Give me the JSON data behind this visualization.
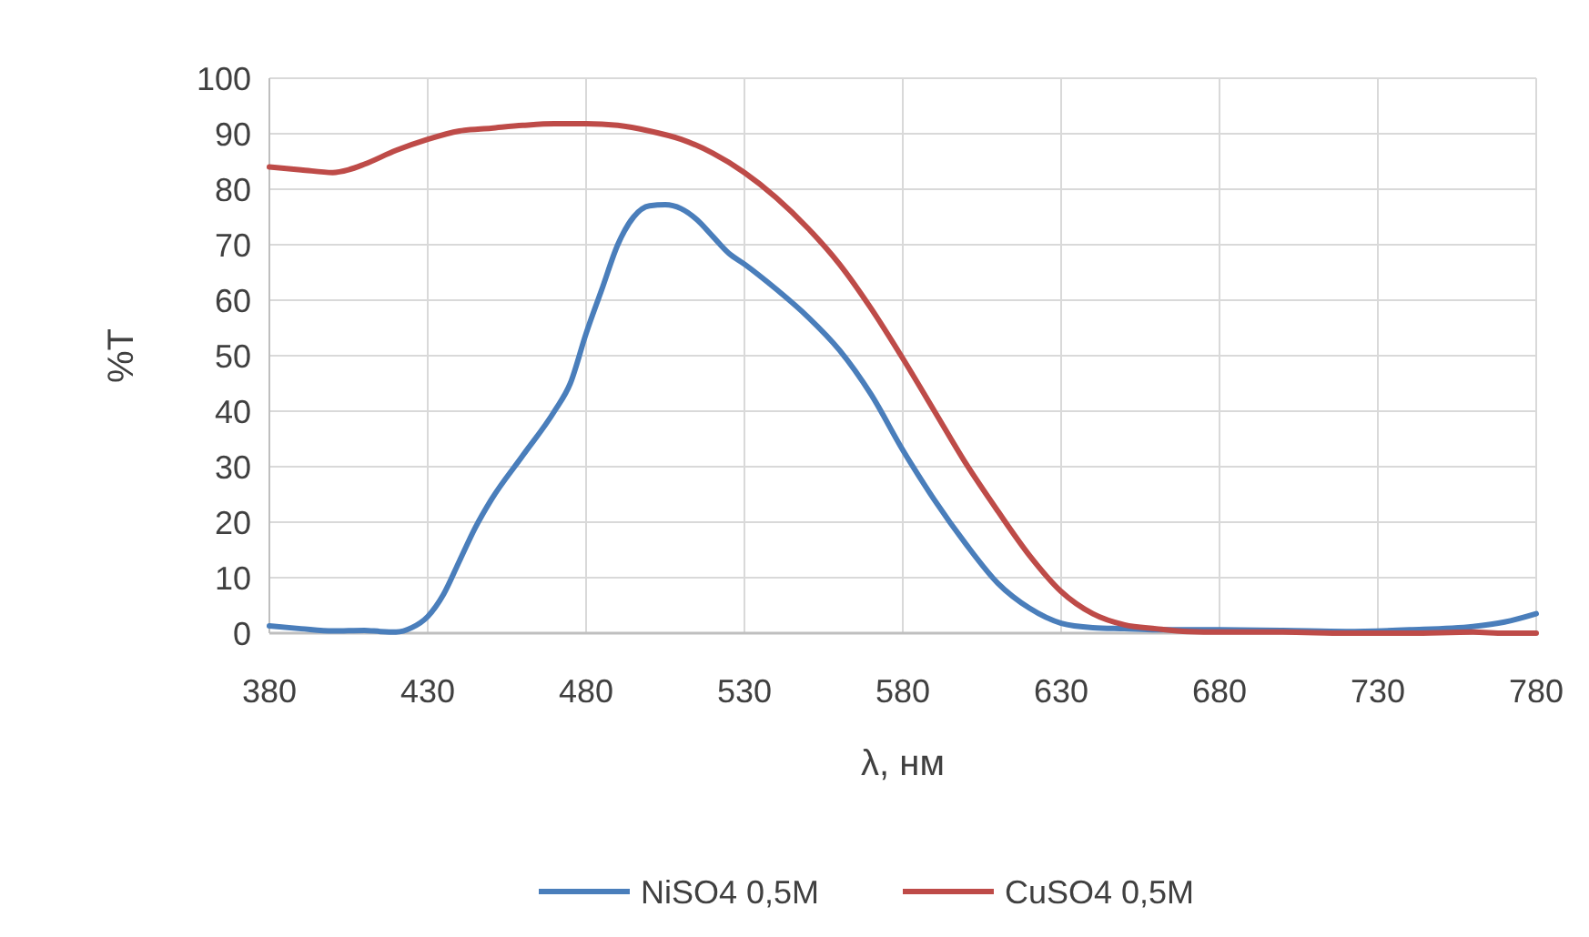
{
  "chart_data": {
    "type": "line",
    "xlabel": "λ, нм",
    "ylabel": "%T",
    "xlim": [
      380,
      780
    ],
    "xticks": [
      380,
      430,
      480,
      530,
      580,
      630,
      680,
      730,
      780
    ],
    "ylim": [
      0,
      100
    ],
    "yticks": [
      0,
      10,
      20,
      30,
      40,
      50,
      60,
      70,
      80,
      90,
      100
    ],
    "grid": true,
    "legend": "bottom",
    "marker": "none",
    "line_style": "solid",
    "series": [
      {
        "name": "NiSO4 0,5M",
        "color": "#4a7ebb",
        "x": [
          380,
          390,
          400,
          410,
          415,
          420,
          425,
          430,
          435,
          440,
          445,
          450,
          460,
          470,
          475,
          480,
          485,
          490,
          495,
          500,
          505,
          510,
          515,
          520,
          525,
          530,
          540,
          550,
          560,
          570,
          580,
          590,
          600,
          610,
          620,
          630,
          640,
          650,
          660,
          680,
          700,
          720,
          740,
          760,
          770,
          780
        ],
        "values": [
          1.3,
          0.8,
          0.4,
          0.5,
          0.3,
          0.2,
          1,
          3,
          7,
          13,
          19,
          24,
          32,
          40,
          45,
          54,
          62,
          70,
          75,
          77,
          77.2,
          76.5,
          74.5,
          71.5,
          68.5,
          66.5,
          62,
          57,
          51,
          43,
          33,
          24,
          16,
          9,
          4.5,
          1.8,
          1,
          0.8,
          0.6,
          0.6,
          0.5,
          0.3,
          0.6,
          1.2,
          2,
          3.5
        ]
      },
      {
        "name": "CuSO4 0,5M",
        "color": "#be4b48",
        "x": [
          380,
          390,
          400,
          405,
          410,
          420,
          430,
          440,
          450,
          460,
          470,
          480,
          490,
          500,
          510,
          520,
          530,
          540,
          550,
          560,
          570,
          580,
          590,
          600,
          610,
          620,
          630,
          640,
          650,
          660,
          670,
          680,
          700,
          720,
          740,
          760,
          770,
          780
        ],
        "values": [
          84,
          83.5,
          83,
          83.5,
          84.5,
          87,
          89,
          90.5,
          91,
          91.5,
          91.8,
          91.8,
          91.5,
          90.5,
          89,
          86.5,
          83,
          78.5,
          73,
          66.5,
          58.5,
          49.5,
          40,
          30.5,
          22,
          14,
          7.5,
          3.5,
          1.5,
          0.8,
          0.3,
          0.2,
          0.2,
          0,
          0,
          0.2,
          0,
          0
        ]
      }
    ]
  }
}
